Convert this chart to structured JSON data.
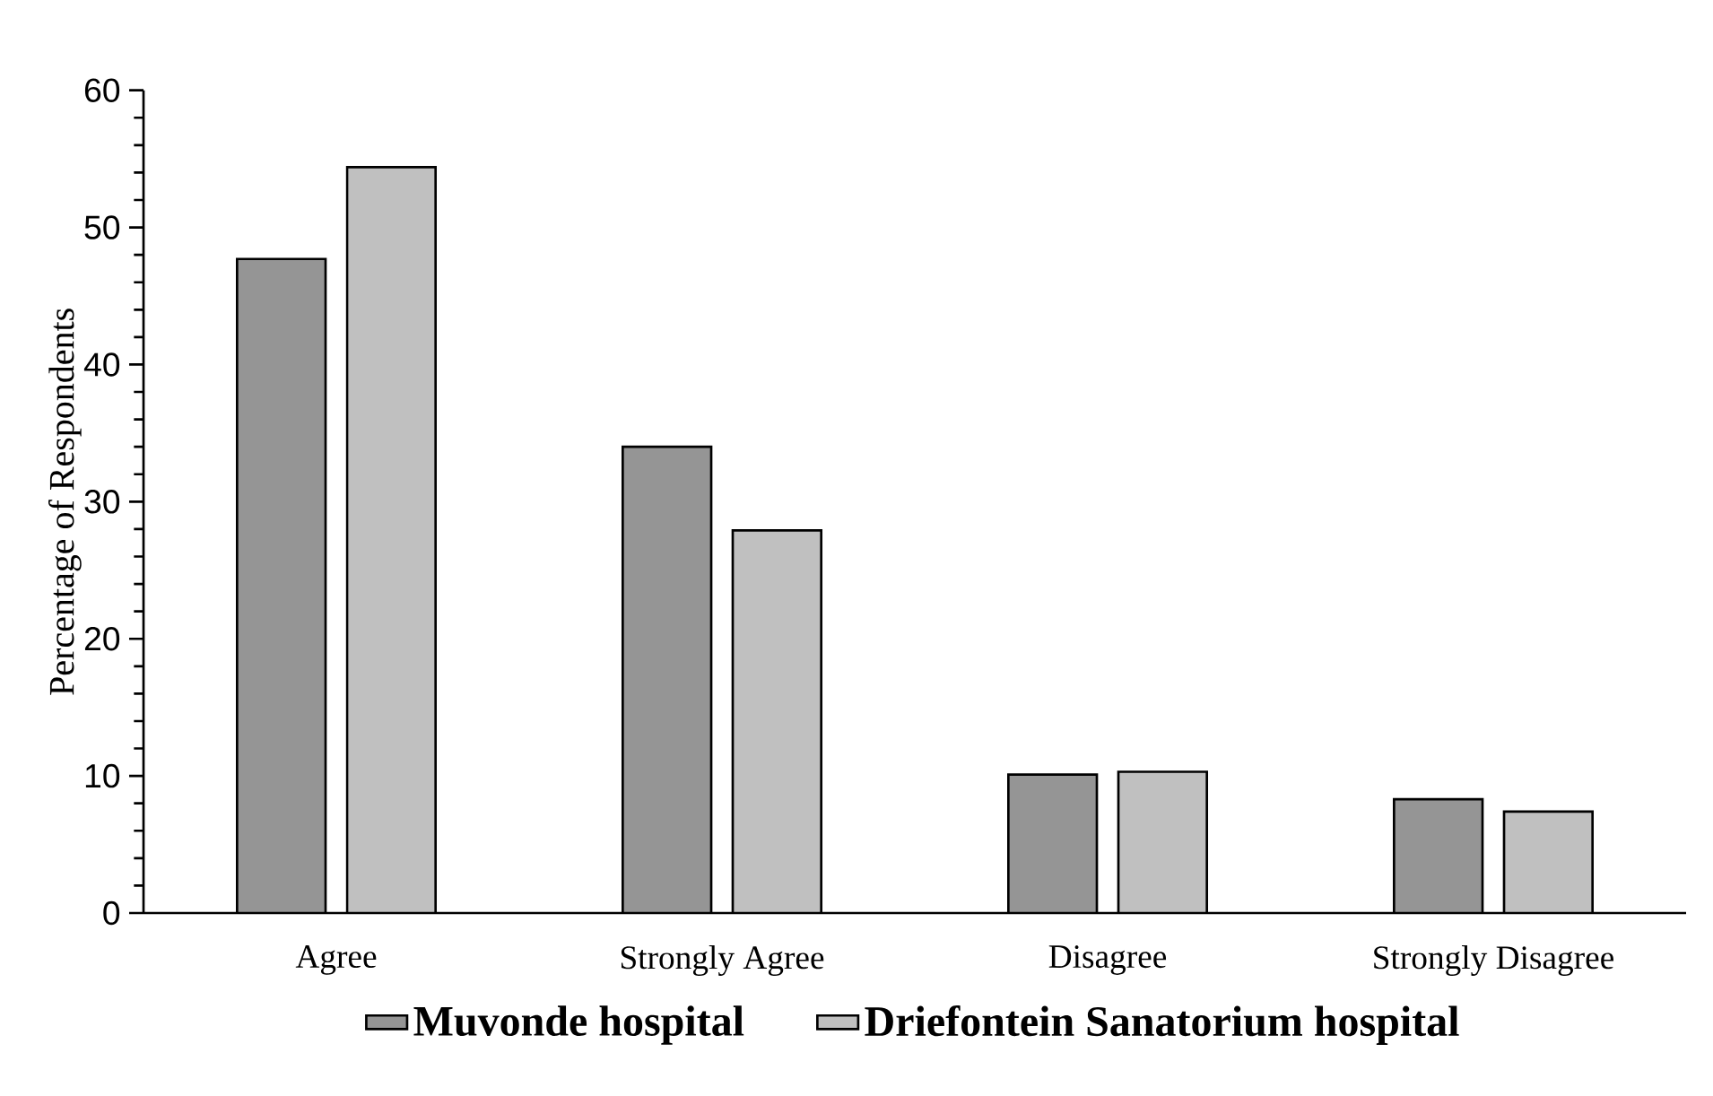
{
  "chart_data": {
    "type": "bar",
    "ylabel": "Percentage of Respondents",
    "categories": [
      "Agree",
      "Strongly Agree",
      "Disagree",
      "Strongly Disagree"
    ],
    "series": [
      {
        "name": "Muvonde hospital",
        "color": "#959595",
        "values": [
          47.7,
          34.0,
          10.1,
          8.3
        ]
      },
      {
        "name": "Driefontein Sanatorium hospital",
        "color": "#c0c0c0",
        "values": [
          54.4,
          27.9,
          10.3,
          7.4
        ]
      }
    ],
    "ylim": [
      0,
      60
    ],
    "yticks": [
      0,
      10,
      20,
      30,
      40,
      50,
      60
    ],
    "grid": false,
    "legend": "bottom"
  }
}
